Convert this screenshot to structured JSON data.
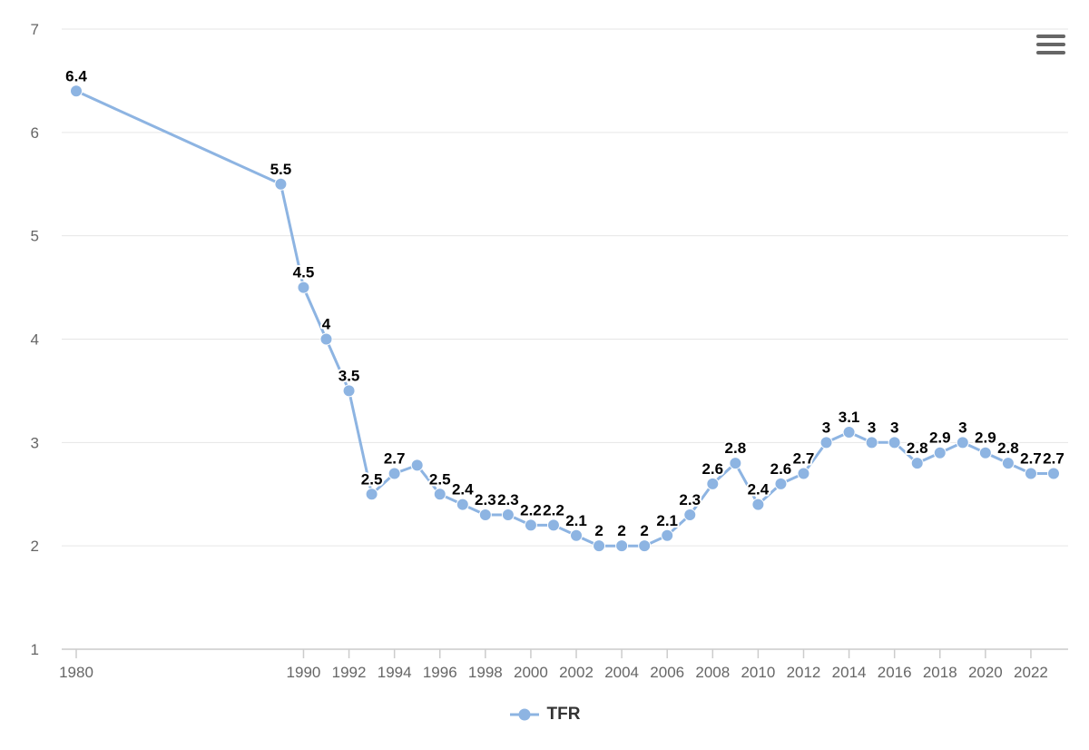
{
  "chart_data": {
    "type": "line",
    "x": [
      1980,
      1989,
      1990,
      1991,
      1992,
      1993,
      1994,
      1995,
      1996,
      1997,
      1998,
      1999,
      2000,
      2001,
      2002,
      2003,
      2004,
      2005,
      2006,
      2007,
      2008,
      2009,
      2010,
      2011,
      2012,
      2013,
      2014,
      2015,
      2016,
      2017,
      2018,
      2019,
      2020,
      2021,
      2022,
      2023
    ],
    "series": [
      {
        "name": "TFR",
        "color": "#8db4e2",
        "values": [
          6.4,
          5.5,
          4.5,
          4,
          3.5,
          2.5,
          2.7,
          2.78,
          2.5,
          2.4,
          2.3,
          2.3,
          2.2,
          2.2,
          2.1,
          2,
          2,
          2,
          2.1,
          2.3,
          2.6,
          2.8,
          2.4,
          2.6,
          2.7,
          3,
          3.1,
          3,
          3,
          2.8,
          2.9,
          3,
          2.9,
          2.8,
          2.7,
          2.7
        ],
        "labels": [
          "6.4",
          "5.5",
          "4.5",
          "4",
          "3.5",
          "2.5",
          "2.7",
          "",
          "2.5",
          "2.4",
          "2.3",
          "2.3",
          "2.2",
          "2.2",
          "2.1",
          "2",
          "2",
          "2",
          "2.1",
          "2.3",
          "2.6",
          "2.8",
          "2.4",
          "2.6",
          "2.7",
          "3",
          "3.1",
          "3",
          "3",
          "2.8",
          "2.9",
          "3",
          "2.9",
          "2.8",
          "2.7",
          "2.7"
        ]
      }
    ],
    "xticks": [
      "1980",
      "1990",
      "1992",
      "1994",
      "1996",
      "1998",
      "2000",
      "2002",
      "2004",
      "2006",
      "2008",
      "2010",
      "2012",
      "2014",
      "2016",
      "2018",
      "2020",
      "2022"
    ],
    "yticks": [
      "1",
      "2",
      "3",
      "4",
      "5",
      "6",
      "7"
    ],
    "ylim": [
      1,
      7
    ],
    "grid": true,
    "legend": "bottom-center",
    "title": "",
    "xlabel": "",
    "ylabel": ""
  },
  "legend": {
    "label": "TFR"
  }
}
